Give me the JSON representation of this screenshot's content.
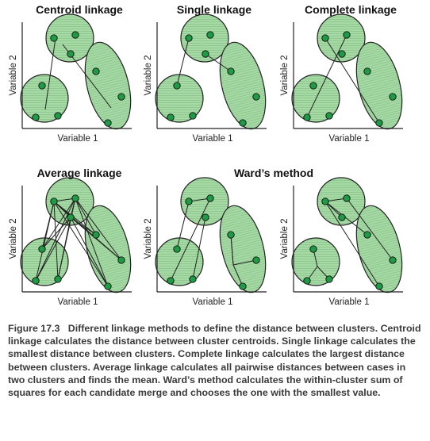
{
  "panels": [
    {
      "title": "Centroid linkage",
      "xlabel": "Variable 1",
      "ylabel": "Variable 2"
    },
    {
      "title": "Single linkage",
      "xlabel": "Variable 1",
      "ylabel": "Variable 2"
    },
    {
      "title": "Complete linkage",
      "xlabel": "Variable 1",
      "ylabel": "Variable 2"
    },
    {
      "title": "Average linkage",
      "xlabel": "Variable 1",
      "ylabel": "Variable 2"
    },
    {
      "title": "",
      "xlabel": "Variable 1",
      "ylabel": "Variable 2"
    },
    {
      "title": "",
      "xlabel": "Variable 1",
      "ylabel": "Variable 2"
    }
  ],
  "merged_title": "Ward’s method",
  "colors": {
    "cluster_fill": "#a8d8a8",
    "cluster_stroke": "#222222",
    "point_fill": "#1f9a45",
    "line": "#222222"
  },
  "caption": {
    "figure_label": "Figure 17.3",
    "text": "Different linkage methods to define the distance between clusters. Centroid linkage calculates the distance between cluster centroids. Single linkage calculates the smallest distance between clusters. Complete linkage calculates the largest distance between clusters. Average linkage calculates all pairwise distances between cases in two clusters and finds the mean. Ward’s method calculates the within-cluster sum of squares for each candidate merge and chooses the one with the smallest value."
  }
}
